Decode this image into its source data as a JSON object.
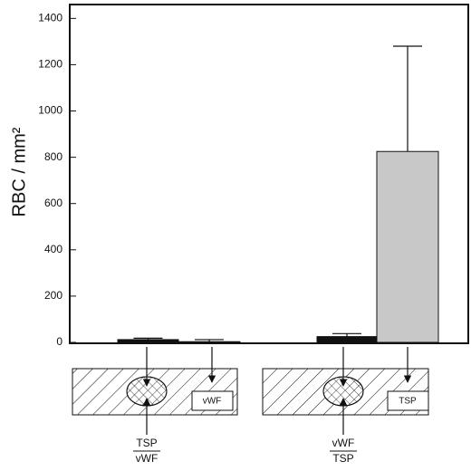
{
  "chart_data": {
    "type": "bar",
    "y_label": "RBC / mm²",
    "categories": [
      null,
      null,
      null,
      null
    ],
    "values": [
      12,
      3,
      25,
      825
    ],
    "errors": [
      6,
      9,
      13,
      455
    ],
    "colors": [
      "#111111",
      "#111111",
      "#111111",
      "#c8c8c8"
    ],
    "ylim": [
      0,
      1460
    ],
    "yticks": [
      0,
      200,
      400,
      600,
      800,
      1000,
      1200,
      1400
    ],
    "grid": false
  },
  "diagrams": [
    {
      "box_label": "vWF",
      "numerator": "TSP",
      "denominator": "vWF"
    },
    {
      "box_label": "TSP",
      "numerator": "vWF",
      "denominator": "TSP"
    }
  ]
}
